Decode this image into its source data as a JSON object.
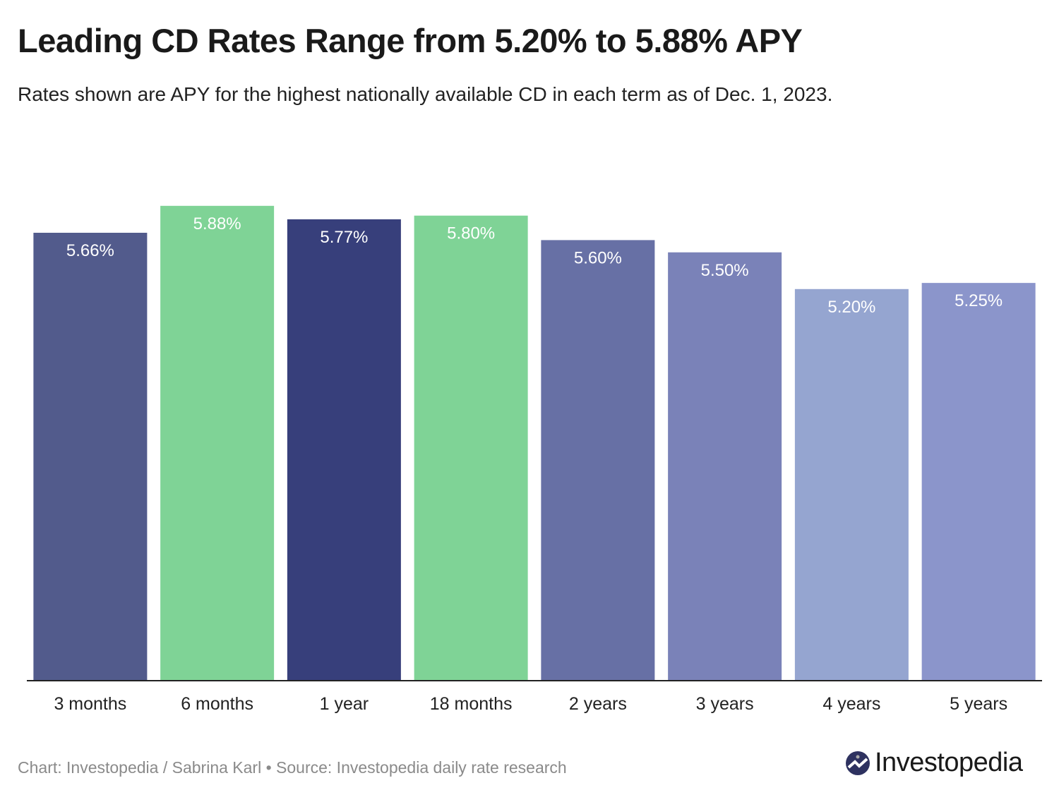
{
  "title": "Leading CD Rates Range from 5.20% to 5.88% APY",
  "subtitle": "Rates shown are APY for the highest nationally available CD in each term as of Dec. 1, 2023.",
  "footer": "Chart: Investopedia / Sabrina Karl • Source: Investopedia daily rate research",
  "logo_text": "Investopedia",
  "chart_data": {
    "type": "bar",
    "categories": [
      "3 months",
      "6 months",
      "1 year",
      "18 months",
      "2 years",
      "3 years",
      "4 years",
      "5 years"
    ],
    "values": [
      5.66,
      5.88,
      5.77,
      5.8,
      5.6,
      5.5,
      5.2,
      5.25
    ],
    "data_labels": [
      "5.66%",
      "5.88%",
      "5.77%",
      "5.80%",
      "5.60%",
      "5.50%",
      "5.20%",
      "5.25%"
    ],
    "colors": [
      "#525b8c",
      "#7fd396",
      "#373f7b",
      "#7fd396",
      "#6770a5",
      "#7a82b8",
      "#95a5d0",
      "#8b95cb"
    ],
    "ylim": [
      2,
      6
    ],
    "grid": false,
    "y_axis_shown": false
  }
}
